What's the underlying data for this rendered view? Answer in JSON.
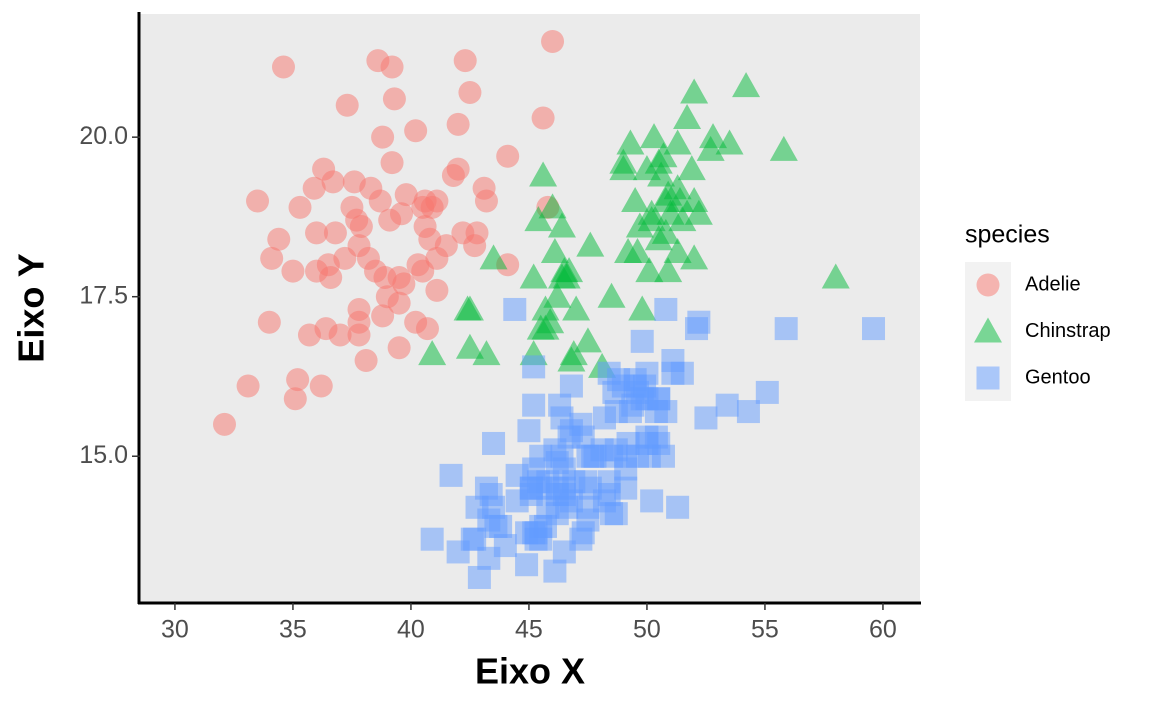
{
  "chart_data": {
    "type": "scatter",
    "x_label": "Eixo X",
    "y_label": "Eixo Y",
    "legend_title": "species",
    "legend": "right",
    "xlim": [
      28.52,
      61.57
    ],
    "ylim": [
      12.7,
      21.93
    ],
    "xticks": [
      30,
      35,
      40,
      45,
      50,
      55,
      60
    ],
    "yticks": [
      {
        "value": 15,
        "label": "15.0"
      },
      17.5,
      {
        "value": 20,
        "label": "20.0"
      }
    ],
    "series": [
      {
        "name": "Adelie",
        "color": "#F8766D",
        "shape": "circle",
        "x": [
          39.1,
          39.5,
          40.3,
          36.7,
          39.3,
          38.9,
          39.2,
          34.1,
          42,
          37.8,
          37.8,
          41.1,
          38.6,
          34.6,
          36.6,
          38.7,
          42.5,
          34.4,
          46,
          37.8,
          37.7,
          35.9,
          38.2,
          38.8,
          35.3,
          40.6,
          40.5,
          37.9,
          40.5,
          39.5,
          37.2,
          39.5,
          40.9,
          36.4,
          39.2,
          38.8,
          42.2,
          37.6,
          39.8,
          36.5,
          40.8,
          36,
          44.1,
          37,
          39.6,
          41.1,
          37.5,
          36,
          42.3,
          32.1,
          33.1,
          35.1,
          45.8,
          45.6,
          33.5,
          35.7,
          41.1,
          40.2,
          37.8,
          35.2,
          36.2,
          40.7,
          42.8,
          44.1,
          37.3,
          38.1,
          43.2,
          41.8,
          35,
          40.6,
          41.5,
          42,
          36.3,
          39.7,
          38.3,
          42.7,
          40.2,
          36.8,
          34,
          38.5,
          43.1,
          39
        ],
        "values": [
          18.7,
          17.4,
          18,
          19.3,
          20.6,
          17.8,
          19.6,
          18.1,
          20.2,
          17.1,
          17.3,
          17.6,
          21.2,
          21.1,
          17.8,
          19,
          20.7,
          18.4,
          21.5,
          18.3,
          18.7,
          19.2,
          18.1,
          17.2,
          18.9,
          18.6,
          17.9,
          18.6,
          18.9,
          16.7,
          18.1,
          17.8,
          18.9,
          17,
          21.1,
          20,
          18.5,
          19.3,
          19.1,
          18,
          18.4,
          18.5,
          19.7,
          16.9,
          18.8,
          19,
          18.9,
          17.9,
          21.2,
          15.5,
          16.1,
          15.9,
          18.9,
          20.3,
          19,
          16.9,
          18.1,
          17.1,
          16.9,
          16.2,
          16.1,
          17,
          18.5,
          18,
          20.5,
          16.5,
          19,
          19.4,
          17.9,
          19,
          18.3,
          19.5,
          19.5,
          17.7,
          19.2,
          18.3,
          20.1,
          18.5,
          17.1,
          17.9,
          19.2,
          17.5
        ]
      },
      {
        "name": "Chinstrap",
        "color": "#00BA38",
        "shape": "triangle",
        "x": [
          46.5,
          50,
          51.3,
          45.4,
          52.7,
          45.2,
          46.1,
          51.3,
          46,
          51.3,
          46.6,
          51.7,
          47,
          52,
          45.9,
          50.5,
          50.3,
          58,
          46.4,
          49.2,
          42.4,
          48.5,
          43.2,
          50.6,
          46.7,
          52,
          50.5,
          49.5,
          46.4,
          52.8,
          40.9,
          54.2,
          42.5,
          51,
          49.7,
          47.5,
          47.6,
          52,
          46.9,
          53.5,
          49,
          46.2,
          50.9,
          45.5,
          50.9,
          50.8,
          50.1,
          49,
          51.5,
          49.8,
          48.1,
          51.4,
          45.7,
          50.7,
          42.5,
          52.2,
          45.2,
          49.3,
          50.2,
          45.6,
          51.9,
          46.8,
          45.7,
          55.8,
          43.5,
          49.6,
          50.8,
          50.2
        ],
        "values": [
          17.9,
          19.5,
          19.2,
          18.7,
          19.8,
          17.8,
          18.2,
          18.2,
          18.9,
          19.9,
          17.8,
          20.3,
          17.3,
          18.1,
          17.1,
          19.6,
          20,
          17.8,
          18.6,
          18.2,
          17.3,
          17.5,
          16.6,
          19.4,
          17.9,
          19,
          18.4,
          19,
          17.8,
          20,
          16.6,
          20.8,
          16.7,
          18.8,
          18.6,
          16.8,
          18.3,
          20.7,
          16.6,
          19.9,
          19.5,
          17.5,
          19.1,
          17,
          17.9,
          18.5,
          17.9,
          19.6,
          18.7,
          17.3,
          16.4,
          19,
          17.3,
          19.7,
          17.3,
          18.8,
          16.6,
          19.9,
          18.8,
          19.4,
          19.5,
          16.5,
          17,
          19.8,
          18.1,
          18.2,
          19,
          18.7
        ]
      },
      {
        "name": "Gentoo",
        "color": "#619CFF",
        "shape": "square",
        "x": [
          46.1,
          50,
          48.7,
          50,
          47.6,
          46.5,
          45.4,
          46.7,
          43.3,
          46.8,
          40.9,
          49,
          45.5,
          48.4,
          45.8,
          49.3,
          42,
          49.2,
          46.2,
          48.7,
          50.2,
          45.1,
          46.5,
          46.3,
          42.9,
          46.1,
          44.5,
          47.8,
          48.2,
          50,
          47.3,
          42.8,
          45.1,
          59.6,
          49.1,
          48.4,
          42.6,
          44.4,
          44,
          48.7,
          42.7,
          49.6,
          45.3,
          49.6,
          50.5,
          43.6,
          45.5,
          50.5,
          44.9,
          45.2,
          46.6,
          48.5,
          45.1,
          50.1,
          46.5,
          45,
          43.8,
          45.5,
          43.2,
          50.4,
          45.3,
          46.2,
          45.7,
          54.3,
          45.8,
          49.8,
          46.2,
          49.5,
          43.5,
          50.7,
          47.7,
          46.4,
          48.2,
          46.5,
          46.4,
          48.6,
          47.5,
          51.1,
          45.2,
          45.2,
          49.1,
          52.5,
          47.4,
          50,
          44.9,
          50.8,
          43.4,
          51.3,
          47.5,
          52.1,
          47.5,
          52.2,
          45.5,
          49.5,
          44.5,
          50.8,
          49.4,
          46.9,
          48.4,
          51.1,
          48.5,
          55.9,
          47.2,
          49.1,
          47.3,
          46.8,
          41.7,
          53.4,
          43.3,
          48.1,
          50.5,
          49.8,
          43.5,
          51.5,
          46.2,
          55.1,
          48.8,
          47.2,
          46.8,
          50.4,
          45.2,
          49.9
        ],
        "values": [
          13.2,
          16.3,
          14.1,
          15.2,
          14.5,
          13.5,
          14.6,
          15.3,
          13.4,
          15.4,
          13.7,
          16.1,
          13.7,
          14.6,
          14.6,
          15.7,
          13.5,
          15.2,
          14.5,
          15.1,
          14.3,
          14.5,
          14.5,
          15.8,
          13.1,
          15.1,
          14.3,
          15,
          14.3,
          15.3,
          15.3,
          14.2,
          14.5,
          17,
          14.8,
          16.3,
          13.7,
          17.3,
          13.6,
          15.7,
          13.7,
          16,
          13.7,
          15,
          15.9,
          13.9,
          13.9,
          15.9,
          13.3,
          15.8,
          14.2,
          14.1,
          14.4,
          15,
          14.4,
          15.4,
          13.9,
          15,
          14.5,
          15.3,
          13.8,
          14.9,
          13.9,
          15.7,
          14.2,
          16.8,
          14.4,
          16.2,
          14.2,
          15,
          15,
          15.6,
          15.6,
          14.8,
          15,
          16,
          14.2,
          16.3,
          13.8,
          16.4,
          14.5,
          15.6,
          14.6,
          15.9,
          13.8,
          17.3,
          14.4,
          14.2,
          14,
          17,
          15,
          17.1,
          14.5,
          16.1,
          14.7,
          15.7,
          15.8,
          14.6,
          14.4,
          16.5,
          15,
          17,
          15.5,
          15,
          13.8,
          16.1,
          14.7,
          15.8,
          14,
          15.1,
          15.2,
          15.9,
          15.2,
          16.3,
          14.1,
          16,
          16.2,
          13.7,
          14.3,
          15.7,
          14.8,
          16.1
        ]
      }
    ]
  }
}
